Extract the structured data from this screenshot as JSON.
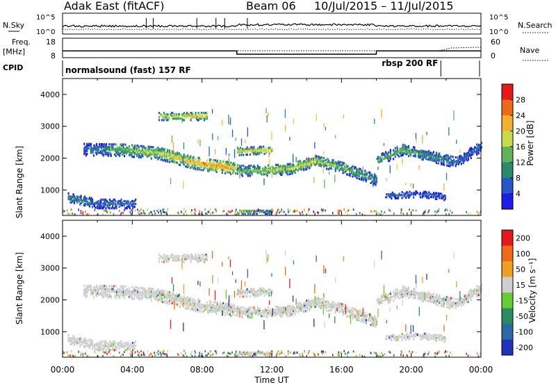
{
  "header": {
    "station": "Adak East (fitACF)",
    "beam": "Beam 06",
    "date_range": "10/Jul/2015 – 11/Jul/2015"
  },
  "strips": {
    "nsky_label": "N.Sky",
    "nsky_ticks": [
      "10^5",
      "10^0"
    ],
    "nsearch_label": "N.Search",
    "nsearch_ticks": [
      "10^5",
      "10^0"
    ],
    "freq_label": "Freq.",
    "freq_unit": "[MHz]",
    "freq_ticks": [
      "18",
      "8"
    ],
    "nave_label": "Nave",
    "nave_ticks": [
      "60",
      "0"
    ],
    "cpid_label": "CPID",
    "cpid_segments": [
      {
        "label": "normalsound (fast) 157 RF",
        "start_ut": 0,
        "end_ut": 21.7
      },
      {
        "label": "rbsp 200 RF",
        "start_ut": 21.7,
        "end_ut": 24
      }
    ],
    "freq_steps": [
      {
        "start_ut": 0,
        "end_ut": 10,
        "freq_mhz": 11.5
      },
      {
        "start_ut": 10,
        "end_ut": 18,
        "freq_mhz": 9.8
      },
      {
        "start_ut": 18,
        "end_ut": 24,
        "freq_mhz": 11.5
      }
    ]
  },
  "chart_data": [
    {
      "type": "heatmap",
      "name": "power",
      "xlabel": "",
      "ylabel": "Slant Range [km]",
      "xlim": [
        0,
        24
      ],
      "ylim": [
        200,
        4500
      ],
      "yticks": [
        "1000",
        "2000",
        "3000",
        "4000"
      ],
      "colorbar": {
        "label": "Power [dB]",
        "ticks": [
          "4",
          "8",
          "12",
          "16",
          "20",
          "24",
          "28"
        ],
        "range": [
          0,
          30
        ],
        "colors": [
          "#1d1de6",
          "#2a55c8",
          "#2a8a6a",
          "#5fb35a",
          "#c8d94a",
          "#f0b030",
          "#ee6a18",
          "#e41a1a"
        ]
      },
      "echo_bands": [
        {
          "x": [
            0.3,
            2,
            4.2
          ],
          "y_center": [
            800,
            600,
            600
          ],
          "half_width": 140,
          "power_db": [
            10,
            8,
            7
          ]
        },
        {
          "x": [
            1.2,
            3.5,
            5.5,
            7.5,
            9.4,
            10
          ],
          "y_center": [
            2320,
            2300,
            2200,
            1900,
            1750,
            1700
          ],
          "half_width": 200,
          "power_db": [
            6,
            14,
            17,
            22,
            24,
            20
          ]
        },
        {
          "x": [
            10,
            11.5,
            13,
            14.5,
            16,
            18
          ],
          "y_center": [
            1650,
            1650,
            1700,
            1950,
            1750,
            1350
          ],
          "half_width": 170,
          "power_db": [
            12,
            16,
            18,
            16,
            14,
            10
          ]
        },
        {
          "x": [
            10,
            12
          ],
          "y_center": [
            2250,
            2300
          ],
          "half_width": 120,
          "power_db": [
            18,
            20
          ]
        },
        {
          "x": [
            18,
            19.5,
            21,
            22.5,
            24
          ],
          "y_center": [
            1950,
            2300,
            2100,
            1900,
            2400
          ],
          "half_width": 160,
          "power_db": [
            12,
            14,
            10,
            8,
            6
          ]
        },
        {
          "x": [
            5.5,
            8.3
          ],
          "y_center": [
            3350,
            3350
          ],
          "half_width": 120,
          "power_db": [
            18,
            20
          ]
        },
        {
          "x": [
            18.5,
            20.5,
            22
          ],
          "y_center": [
            850,
            900,
            800
          ],
          "half_width": 90,
          "power_db": [
            6,
            6,
            5
          ]
        },
        {
          "x": [
            10,
            12
          ],
          "y_center": [
            350,
            350
          ],
          "half_width": 60,
          "power_db": [
            20,
            14
          ]
        }
      ]
    },
    {
      "type": "heatmap",
      "name": "velocity",
      "xlabel": "Time UT",
      "ylabel": "Slant Range [km]",
      "xlim": [
        0,
        24
      ],
      "ylim": [
        200,
        4500
      ],
      "xticks": [
        "00:00",
        "04:00",
        "08:00",
        "12:00",
        "16:00",
        "20:00",
        "00:00"
      ],
      "yticks": [
        "1000",
        "2000",
        "3000",
        "4000"
      ],
      "colorbar": {
        "label": "Velocity [m s⁻¹]",
        "ticks": [
          "200",
          "100",
          "50",
          "15",
          "-15",
          "-50",
          "-100",
          "-200"
        ],
        "colors": [
          "#2233bb",
          "#2a6aa0",
          "#2a8a60",
          "#66cc33",
          "#cfcfcf",
          "#f0a020",
          "#ee6a18",
          "#e41a1a"
        ]
      },
      "dominant_velocity_class": "-15 to 15"
    }
  ]
}
